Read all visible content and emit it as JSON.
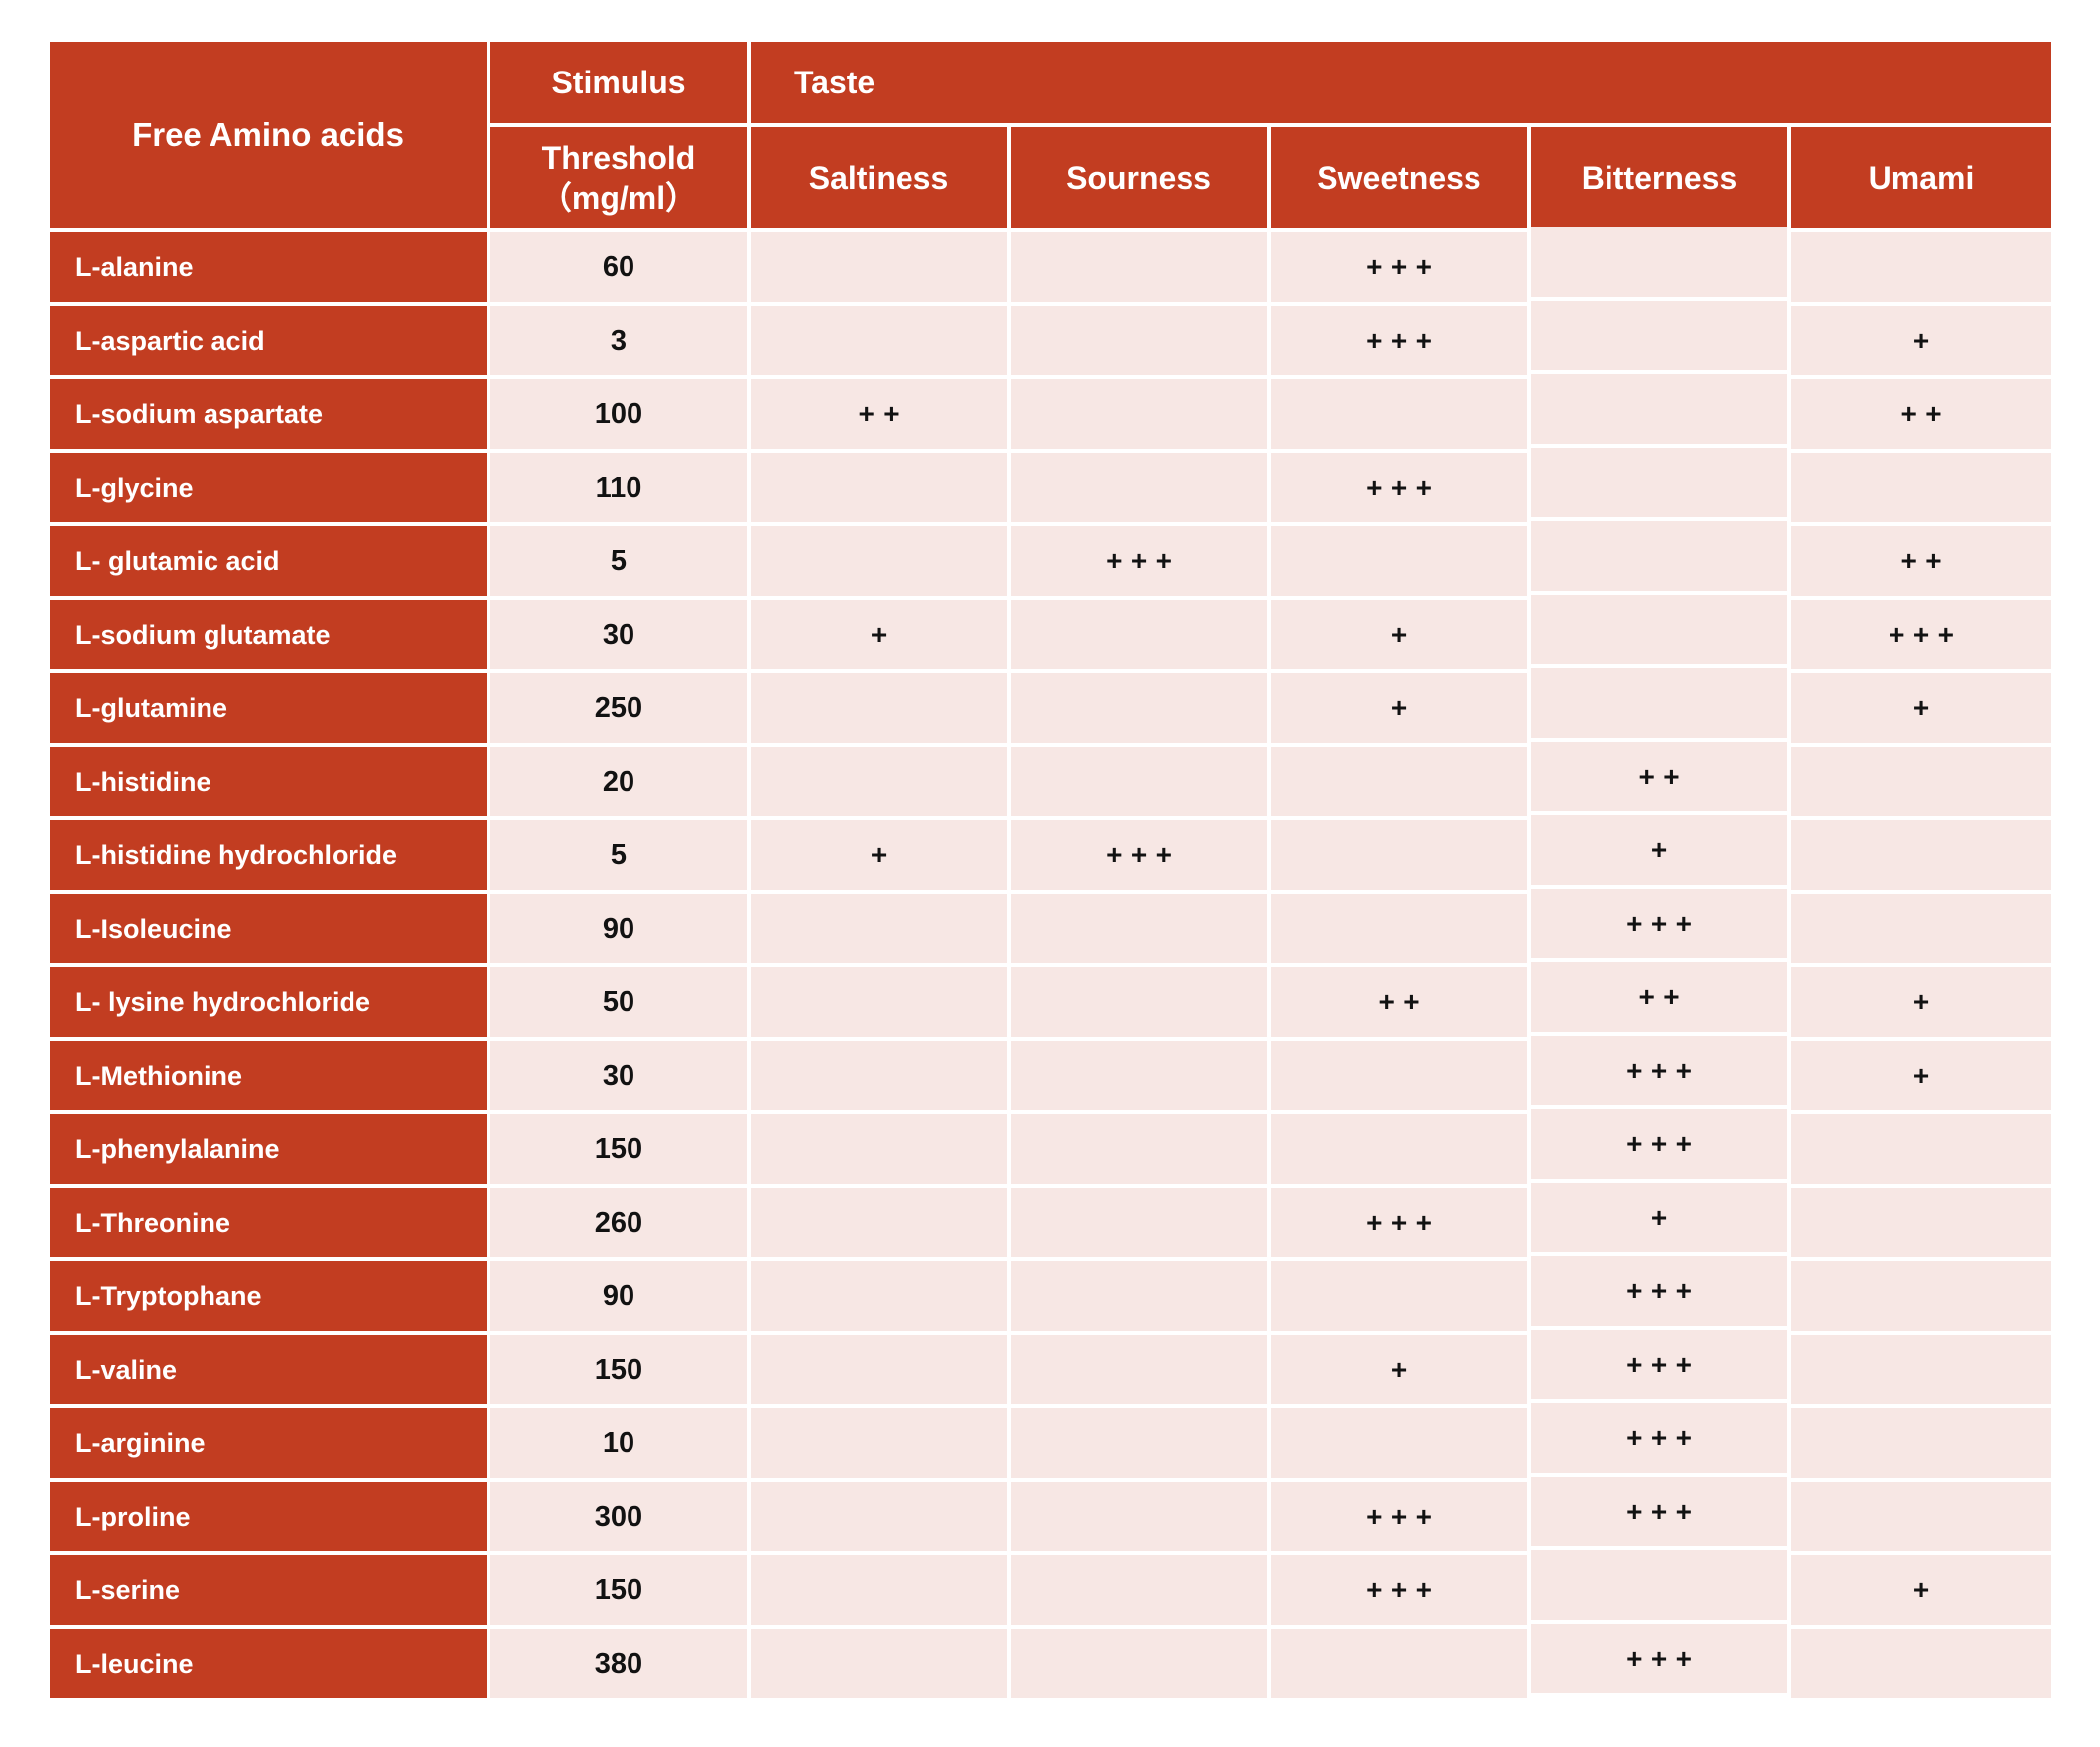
{
  "colors": {
    "header_red": "#C23D21",
    "cell_pink": "#F7E7E4",
    "body_text": "#121212",
    "header_text": "#FFFFFF",
    "background_white": "#FFFFFF"
  },
  "table": {
    "header": {
      "col1": "Free Amino acids",
      "stimulus": "Stimulus",
      "threshold_line1": "Threshold",
      "threshold_line2": "（mg/ml）",
      "taste": "Taste",
      "taste_columns": [
        "Saltiness",
        "Sourness",
        "Sweetness",
        "Bitterness",
        "Umami"
      ]
    },
    "rows": [
      {
        "name": "L-alanine",
        "threshold": "60",
        "saltiness": "",
        "sourness": "",
        "sweetness": "+++",
        "bitterness": "",
        "umami": ""
      },
      {
        "name": "L-aspartic acid",
        "threshold": "3",
        "saltiness": "",
        "sourness": "",
        "sweetness": "+++",
        "bitterness": "",
        "umami": "+"
      },
      {
        "name": "L-sodium aspartate",
        "threshold": "100",
        "saltiness": "++",
        "sourness": "",
        "sweetness": "",
        "bitterness": "",
        "umami": "++"
      },
      {
        "name": "L-glycine",
        "threshold": "110",
        "saltiness": "",
        "sourness": "",
        "sweetness": "+++",
        "bitterness": "",
        "umami": ""
      },
      {
        "name": "L- glutamic acid",
        "threshold": "5",
        "saltiness": "",
        "sourness": "+++",
        "sweetness": "",
        "bitterness": "",
        "umami": "++"
      },
      {
        "name": "L-sodium glutamate",
        "threshold": "30",
        "saltiness": "+",
        "sourness": "",
        "sweetness": "+",
        "bitterness": "",
        "umami": "+++"
      },
      {
        "name": "L-glutamine",
        "threshold": "250",
        "saltiness": "",
        "sourness": "",
        "sweetness": "+",
        "bitterness": "",
        "umami": "+"
      },
      {
        "name": "L-histidine",
        "threshold": "20",
        "saltiness": "",
        "sourness": "",
        "sweetness": "",
        "bitterness": "++",
        "umami": ""
      },
      {
        "name": "L-histidine hydrochloride",
        "threshold": "5",
        "saltiness": "+",
        "sourness": "+++",
        "sweetness": "",
        "bitterness": "+",
        "umami": ""
      },
      {
        "name": "L-Isoleucine",
        "threshold": "90",
        "saltiness": "",
        "sourness": "",
        "sweetness": "",
        "bitterness": "+++",
        "umami": ""
      },
      {
        "name": "L- lysine hydrochloride",
        "threshold": "50",
        "saltiness": "",
        "sourness": "",
        "sweetness": "++",
        "bitterness": "++",
        "umami": "+"
      },
      {
        "name": "L-Methionine",
        "threshold": "30",
        "saltiness": "",
        "sourness": "",
        "sweetness": "",
        "bitterness": "+++",
        "umami": "+"
      },
      {
        "name": "L-phenylalanine",
        "threshold": "150",
        "saltiness": "",
        "sourness": "",
        "sweetness": "",
        "bitterness": "+++",
        "umami": ""
      },
      {
        "name": "L-Threonine",
        "threshold": "260",
        "saltiness": "",
        "sourness": "",
        "sweetness": "+++",
        "bitterness": "+",
        "umami": ""
      },
      {
        "name": "L-Tryptophane",
        "threshold": "90",
        "saltiness": "",
        "sourness": "",
        "sweetness": "",
        "bitterness": "+++",
        "umami": ""
      },
      {
        "name": "L-valine",
        "threshold": "150",
        "saltiness": "",
        "sourness": "",
        "sweetness": "+",
        "bitterness": "+++",
        "umami": ""
      },
      {
        "name": "L-arginine",
        "threshold": "10",
        "saltiness": "",
        "sourness": "",
        "sweetness": "",
        "bitterness": "+++",
        "umami": ""
      },
      {
        "name": "L-proline",
        "threshold": "300",
        "saltiness": "",
        "sourness": "",
        "sweetness": "+++",
        "bitterness": "+++",
        "umami": ""
      },
      {
        "name": "L-serine",
        "threshold": "150",
        "saltiness": "",
        "sourness": "",
        "sweetness": "+++",
        "bitterness": "",
        "umami": "+"
      },
      {
        "name": "L-leucine",
        "threshold": "380",
        "saltiness": "",
        "sourness": "",
        "sweetness": "",
        "bitterness": "+++",
        "umami": ""
      }
    ]
  }
}
